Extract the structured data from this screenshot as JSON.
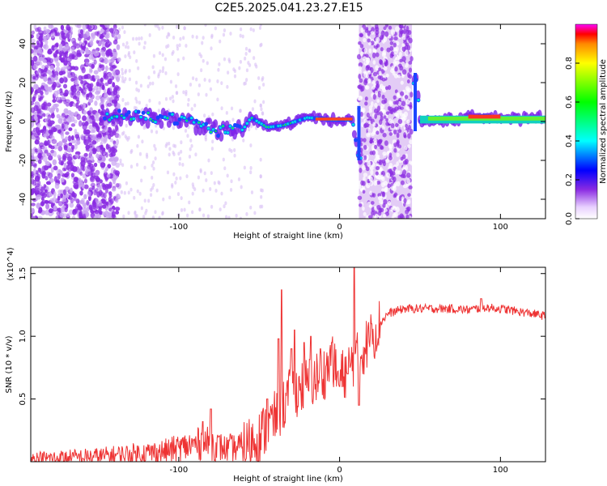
{
  "title": "C2E5.2025.041.23.27.E15",
  "chart_data": [
    {
      "type": "heatmap",
      "xlabel": "Height of straight line (km)",
      "ylabel": "Frequency (Hz)",
      "xlim": [
        -192,
        128
      ],
      "ylim": [
        -50,
        50
      ],
      "xticks": [
        -100,
        0,
        100
      ],
      "yticks": [
        -40,
        -20,
        0,
        20,
        40
      ],
      "colorbar": {
        "label": "Normalized spectral amplitude",
        "range": [
          0,
          1
        ],
        "ticks": [
          "0.0",
          "0.2",
          "0.4",
          "0.6",
          "0.8"
        ]
      },
      "ridge": [
        {
          "x": -145,
          "y": 3
        },
        {
          "x": -130,
          "y": 3
        },
        {
          "x": -115,
          "y": 2
        },
        {
          "x": -100,
          "y": 1
        },
        {
          "x": -85,
          "y": -2
        },
        {
          "x": -75,
          "y": -5
        },
        {
          "x": -60,
          "y": -4
        },
        {
          "x": -55,
          "y": 2
        },
        {
          "x": -45,
          "y": -3
        },
        {
          "x": -35,
          "y": -2
        },
        {
          "x": -20,
          "y": 2
        },
        {
          "x": -5,
          "y": 1
        },
        {
          "x": 8,
          "y": 1
        },
        {
          "x": 12,
          "y": -20
        },
        {
          "x": 48,
          "y": 22
        },
        {
          "x": 50,
          "y": 0
        },
        {
          "x": 70,
          "y": 1
        },
        {
          "x": 90,
          "y": 3
        },
        {
          "x": 110,
          "y": 1
        },
        {
          "x": 128,
          "y": 2
        }
      ],
      "shaded_band": {
        "x": [
          12,
          45
        ]
      }
    },
    {
      "type": "line",
      "xlabel": "Height of straight line (km)",
      "ylabel": "SNR (10 * v/v)",
      "y_multiplier": "(x10^4)",
      "xlim": [
        -192,
        128
      ],
      "ylim": [
        0,
        1.55
      ],
      "xticks": [
        -100,
        0,
        100
      ],
      "yticks": [
        0.5,
        1.0,
        1.5
      ],
      "series": [
        {
          "color": "#ee3333",
          "x": [
            -192,
            -170,
            -150,
            -130,
            -110,
            -95,
            -85,
            -80,
            -70,
            -60,
            -50,
            -40,
            -35,
            -30,
            -20,
            -10,
            -5,
            0,
            5,
            10,
            15,
            20,
            25,
            30,
            40,
            50,
            60,
            70,
            80,
            90,
            100,
            110,
            120,
            128
          ],
          "y": [
            0.02,
            0.03,
            0.04,
            0.06,
            0.08,
            0.12,
            0.15,
            0.14,
            0.1,
            0.12,
            0.2,
            0.35,
            0.45,
            0.55,
            0.62,
            0.7,
            0.8,
            0.65,
            0.75,
            0.8,
            0.9,
            1.0,
            1.1,
            1.18,
            1.22,
            1.22,
            1.22,
            1.22,
            1.21,
            1.23,
            1.22,
            1.2,
            1.18,
            1.16
          ]
        }
      ],
      "spikes": [
        {
          "x": -85,
          "y": 0.32
        },
        {
          "x": -80,
          "y": 0.42
        },
        {
          "x": -68,
          "y": 0.22
        },
        {
          "x": -45,
          "y": 0.5
        },
        {
          "x": -38,
          "y": 0.98
        },
        {
          "x": -36,
          "y": 1.37
        },
        {
          "x": -30,
          "y": 0.9
        },
        {
          "x": -28,
          "y": 1.05
        },
        {
          "x": -22,
          "y": 0.95
        },
        {
          "x": -18,
          "y": 1.0
        },
        {
          "x": -12,
          "y": 0.9
        },
        {
          "x": -5,
          "y": 0.95
        },
        {
          "x": 0,
          "y": 0.6
        },
        {
          "x": 5,
          "y": 0.7
        },
        {
          "x": 9,
          "y": 1.55
        },
        {
          "x": 12,
          "y": 0.45
        },
        {
          "x": 20,
          "y": 1.1
        },
        {
          "x": 88,
          "y": 1.3
        }
      ]
    }
  ]
}
